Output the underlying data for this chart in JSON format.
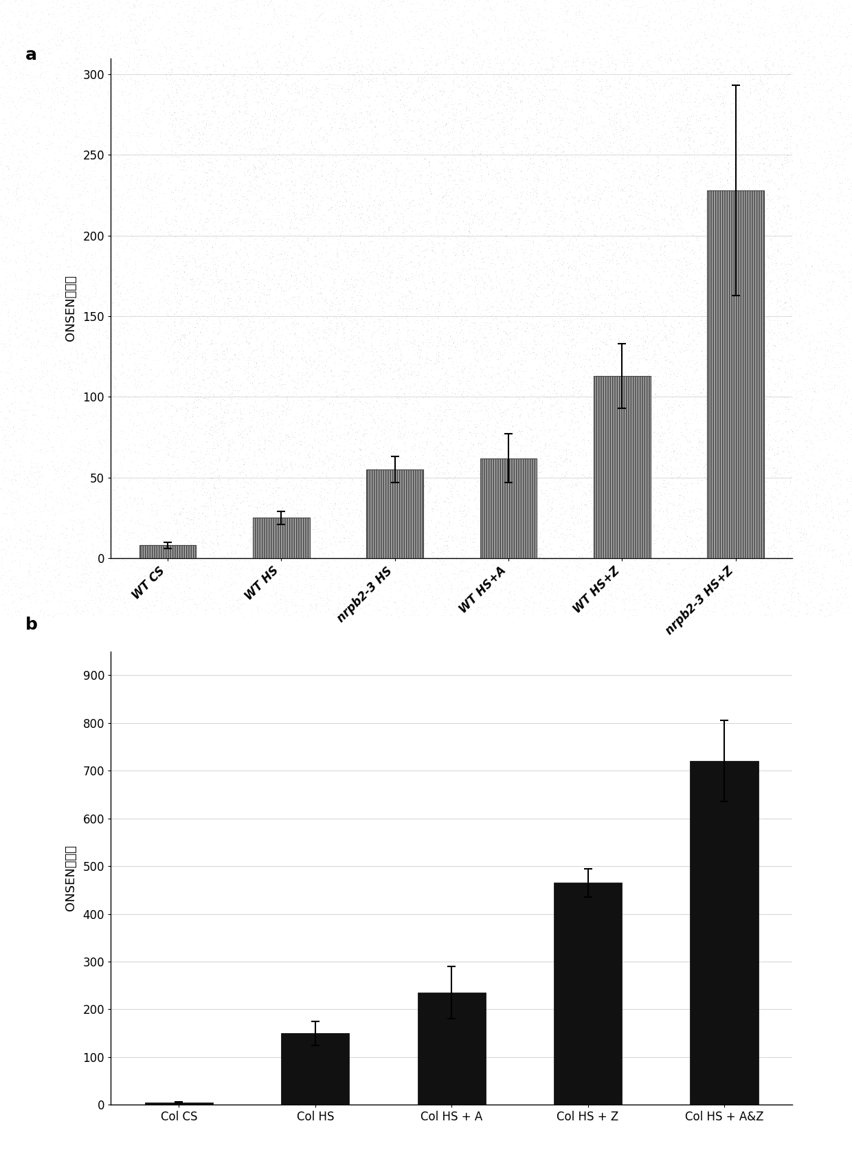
{
  "panel_a": {
    "categories": [
      "WT CS",
      "WT HS",
      "nrpb2-3 HS",
      "WT HS+A",
      "WT HS+Z",
      "nrpb2-3 HS+Z"
    ],
    "values": [
      8,
      25,
      55,
      62,
      113,
      228
    ],
    "errors": [
      2,
      4,
      8,
      15,
      20,
      65
    ],
    "bar_color": "#a0a0a0",
    "hatch": "||||",
    "ylabel": "ONSEN拷贝数",
    "ylim": [
      0,
      310
    ],
    "yticks": [
      0,
      50,
      100,
      150,
      200,
      250,
      300
    ],
    "label": "a",
    "bg_color": "#c8c8c8"
  },
  "panel_b": {
    "categories": [
      "Col CS",
      "Col HS",
      "Col HS + A",
      "Col HS + Z",
      "Col HS + A&Z"
    ],
    "values": [
      5,
      150,
      235,
      465,
      720
    ],
    "errors": [
      2,
      25,
      55,
      30,
      85
    ],
    "bar_color": "#111111",
    "ylabel": "ONSEN拷贝数",
    "ylim": [
      0,
      950
    ],
    "yticks": [
      0,
      100,
      200,
      300,
      400,
      500,
      600,
      700,
      800,
      900
    ],
    "label": "b",
    "bg_color": "#ffffff"
  },
  "figure_bg": "#ffffff",
  "stipple_color": "#aaaaaa",
  "stipple_alpha": 0.5
}
